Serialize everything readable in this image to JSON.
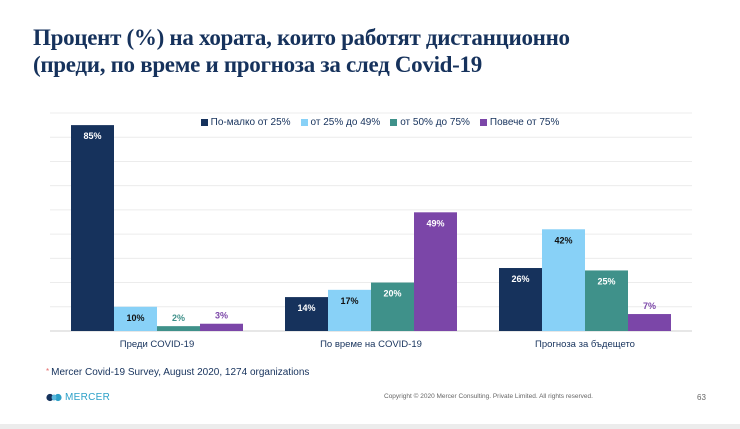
{
  "page": {
    "title_line1": "Процент (%) на хората, които работят дистанционно",
    "title_line2": "(преди, по време и прогноза за след Covid-19",
    "footnote_marker": "*",
    "footnote": "Mercer Covid-19 Survey, August 2020, 1274 organizations",
    "logo_text": "MERCER",
    "logo_icon": "mercer-wave-icon",
    "copyright": "Copyright © 2020 Mercer Consulting. Private Limited. All rights reserved.",
    "page_number": "63"
  },
  "chart_data": {
    "type": "bar",
    "title": "Процент (%) на хората, които работят дистанционно (преди, по време и прогноза за след Covid-19",
    "xlabel": "",
    "ylabel": "",
    "ylim": [
      0,
      90
    ],
    "grid": true,
    "grid_step": 10,
    "legend_position": "top-center",
    "categories": [
      "Преди COVID-19",
      "По време на COVID-19",
      "Прогноза за бъдещето"
    ],
    "series": [
      {
        "name": "По-малко от 25%",
        "color": "#16325c",
        "label_color": "#ffffff",
        "values": [
          85,
          14,
          26
        ],
        "labels": [
          "85%",
          "14%",
          "26%"
        ]
      },
      {
        "name": "от 25% до 49%",
        "color": "#88d1f7",
        "label_color": "#111111",
        "values": [
          10,
          17,
          42
        ],
        "labels": [
          "10%",
          "17%",
          "42%"
        ]
      },
      {
        "name": "от 50% до 75%",
        "color": "#3f918a",
        "label_color": "#ffffff",
        "values": [
          2,
          20,
          25
        ],
        "labels": [
          "2%",
          "20%",
          "25%"
        ]
      },
      {
        "name": "Повече от 75%",
        "color": "#7b46a8",
        "label_color": "#ffffff",
        "values": [
          3,
          49,
          7
        ],
        "labels": [
          "3%",
          "49%",
          "7%"
        ]
      }
    ]
  }
}
